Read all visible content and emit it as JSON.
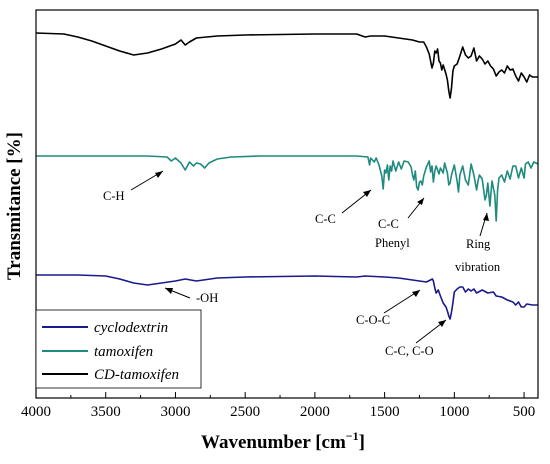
{
  "chart_data": {
    "type": "line",
    "title": "",
    "xlabel": "Wavenumber [cm",
    "xlabel_sup": "−1",
    "xlabel_close": "]",
    "ylabel": "Transmitance [%]",
    "xlim": [
      4000,
      400
    ],
    "x_reversed": true,
    "x_ticks": [
      4000,
      3500,
      3000,
      2500,
      2000,
      1500,
      1000,
      500
    ],
    "y_ticks": "none",
    "grid": false,
    "legend_position": "bottom-left",
    "series": [
      {
        "name": "cyclodextrin",
        "color": "#1a1a8c",
        "points": [
          [
            4000,
            275
          ],
          [
            3700,
            275
          ],
          [
            3500,
            276
          ],
          [
            3400,
            279
          ],
          [
            3300,
            283
          ],
          [
            3200,
            285
          ],
          [
            3100,
            283
          ],
          [
            3000,
            281
          ],
          [
            2930,
            279
          ],
          [
            2850,
            281
          ],
          [
            2700,
            278
          ],
          [
            2500,
            277
          ],
          [
            2000,
            276
          ],
          [
            1700,
            277
          ],
          [
            1640,
            276
          ],
          [
            1500,
            277
          ],
          [
            1400,
            278
          ],
          [
            1300,
            280
          ],
          [
            1250,
            281
          ],
          [
            1200,
            282
          ],
          [
            1157,
            279
          ],
          [
            1150,
            281
          ],
          [
            1140,
            288
          ],
          [
            1130,
            293
          ],
          [
            1115,
            290
          ],
          [
            1100,
            296
          ],
          [
            1080,
            303
          ],
          [
            1060,
            307
          ],
          [
            1050,
            311
          ],
          [
            1040,
            316
          ],
          [
            1030,
            319
          ],
          [
            1020,
            312
          ],
          [
            1010,
            303
          ],
          [
            1000,
            292
          ],
          [
            980,
            289
          ],
          [
            960,
            287
          ],
          [
            940,
            287
          ],
          [
            920,
            292
          ],
          [
            900,
            289
          ],
          [
            880,
            291
          ],
          [
            860,
            289
          ],
          [
            840,
            293
          ],
          [
            800,
            290
          ],
          [
            760,
            293
          ],
          [
            720,
            292
          ],
          [
            700,
            296
          ],
          [
            660,
            297
          ],
          [
            620,
            300
          ],
          [
            580,
            302
          ],
          [
            560,
            305
          ],
          [
            540,
            302
          ],
          [
            520,
            307
          ],
          [
            500,
            307
          ],
          [
            480,
            304
          ],
          [
            440,
            305
          ],
          [
            400,
            305
          ]
        ]
      },
      {
        "name": "tamoxifen",
        "color": "#1f8a7e",
        "points": [
          [
            4000,
            156
          ],
          [
            3600,
            156
          ],
          [
            3200,
            156
          ],
          [
            3060,
            157
          ],
          [
            3030,
            161
          ],
          [
            3000,
            158
          ],
          [
            2960,
            163
          ],
          [
            2930,
            170
          ],
          [
            2900,
            162
          ],
          [
            2870,
            166
          ],
          [
            2850,
            163
          ],
          [
            2820,
            164
          ],
          [
            2790,
            168
          ],
          [
            2760,
            163
          ],
          [
            2700,
            159
          ],
          [
            2600,
            157
          ],
          [
            2400,
            156
          ],
          [
            2000,
            156
          ],
          [
            1700,
            156
          ],
          [
            1620,
            157
          ],
          [
            1608,
            165
          ],
          [
            1600,
            158
          ],
          [
            1575,
            162
          ],
          [
            1560,
            158
          ],
          [
            1540,
            165
          ],
          [
            1520,
            176
          ],
          [
            1510,
            189
          ],
          [
            1500,
            170
          ],
          [
            1490,
            173
          ],
          [
            1480,
            165
          ],
          [
            1470,
            180
          ],
          [
            1460,
            166
          ],
          [
            1450,
            171
          ],
          [
            1440,
            161
          ],
          [
            1420,
            171
          ],
          [
            1400,
            162
          ],
          [
            1380,
            169
          ],
          [
            1360,
            161
          ],
          [
            1330,
            162
          ],
          [
            1310,
            167
          ],
          [
            1300,
            175
          ],
          [
            1290,
            180
          ],
          [
            1280,
            171
          ],
          [
            1270,
            187
          ],
          [
            1260,
            190
          ],
          [
            1250,
            182
          ],
          [
            1240,
            181
          ],
          [
            1230,
            185
          ],
          [
            1220,
            176
          ],
          [
            1200,
            167
          ],
          [
            1180,
            161
          ],
          [
            1170,
            172
          ],
          [
            1160,
            166
          ],
          [
            1150,
            182
          ],
          [
            1140,
            171
          ],
          [
            1130,
            166
          ],
          [
            1110,
            174
          ],
          [
            1100,
            168
          ],
          [
            1080,
            173
          ],
          [
            1070,
            163
          ],
          [
            1050,
            173
          ],
          [
            1040,
            185
          ],
          [
            1030,
            183
          ],
          [
            1020,
            175
          ],
          [
            1000,
            165
          ],
          [
            980,
            181
          ],
          [
            970,
            192
          ],
          [
            960,
            175
          ],
          [
            940,
            166
          ],
          [
            920,
            180
          ],
          [
            900,
            185
          ],
          [
            880,
            164
          ],
          [
            860,
            175
          ],
          [
            840,
            190
          ],
          [
            830,
            181
          ],
          [
            820,
            175
          ],
          [
            800,
            179
          ],
          [
            780,
            200
          ],
          [
            770,
            195
          ],
          [
            760,
            183
          ],
          [
            745,
            206
          ],
          [
            730,
            181
          ],
          [
            710,
            195
          ],
          [
            700,
            221
          ],
          [
            690,
            190
          ],
          [
            680,
            178
          ],
          [
            660,
            175
          ],
          [
            640,
            182
          ],
          [
            620,
            171
          ],
          [
            600,
            179
          ],
          [
            580,
            166
          ],
          [
            560,
            166
          ],
          [
            540,
            178
          ],
          [
            520,
            168
          ],
          [
            500,
            178
          ],
          [
            490,
            164
          ],
          [
            470,
            162
          ],
          [
            450,
            168
          ],
          [
            430,
            162
          ],
          [
            400,
            164
          ]
        ]
      },
      {
        "name": "CD-tamoxifen",
        "color": "#000000",
        "points": [
          [
            4000,
            33
          ],
          [
            3800,
            34
          ],
          [
            3700,
            37
          ],
          [
            3600,
            41
          ],
          [
            3500,
            46
          ],
          [
            3400,
            51
          ],
          [
            3300,
            55
          ],
          [
            3200,
            53
          ],
          [
            3100,
            49
          ],
          [
            3000,
            44
          ],
          [
            2960,
            40
          ],
          [
            2930,
            45
          ],
          [
            2900,
            42
          ],
          [
            2850,
            38
          ],
          [
            2700,
            36
          ],
          [
            2500,
            35
          ],
          [
            2000,
            34
          ],
          [
            1700,
            34
          ],
          [
            1640,
            37
          ],
          [
            1600,
            36
          ],
          [
            1500,
            36
          ],
          [
            1400,
            38
          ],
          [
            1300,
            40
          ],
          [
            1250,
            42
          ],
          [
            1220,
            42
          ],
          [
            1200,
            47
          ],
          [
            1180,
            54
          ],
          [
            1160,
            68
          ],
          [
            1150,
            63
          ],
          [
            1140,
            51
          ],
          [
            1130,
            53
          ],
          [
            1120,
            49
          ],
          [
            1110,
            61
          ],
          [
            1100,
            63
          ],
          [
            1090,
            70
          ],
          [
            1080,
            65
          ],
          [
            1060,
            74
          ],
          [
            1050,
            80
          ],
          [
            1040,
            91
          ],
          [
            1030,
            98
          ],
          [
            1020,
            88
          ],
          [
            1010,
            71
          ],
          [
            1000,
            66
          ],
          [
            980,
            64
          ],
          [
            960,
            56
          ],
          [
            940,
            47
          ],
          [
            920,
            55
          ],
          [
            900,
            58
          ],
          [
            880,
            56
          ],
          [
            860,
            48
          ],
          [
            840,
            61
          ],
          [
            820,
            56
          ],
          [
            800,
            59
          ],
          [
            780,
            64
          ],
          [
            760,
            61
          ],
          [
            740,
            66
          ],
          [
            720,
            69
          ],
          [
            700,
            76
          ],
          [
            680,
            72
          ],
          [
            660,
            70
          ],
          [
            640,
            73
          ],
          [
            620,
            66
          ],
          [
            600,
            70
          ],
          [
            580,
            69
          ],
          [
            560,
            76
          ],
          [
            540,
            81
          ],
          [
            520,
            73
          ],
          [
            500,
            77
          ],
          [
            480,
            82
          ],
          [
            460,
            75
          ],
          [
            440,
            77
          ],
          [
            400,
            77
          ]
        ]
      }
    ],
    "annotations": [
      {
        "text": "C-H"
      },
      {
        "text": "C-C"
      },
      {
        "text": "C-C"
      },
      {
        "text": "Phenyl"
      },
      {
        "text": "Ring"
      },
      {
        "text": "vibration"
      },
      {
        "text": "-OH"
      },
      {
        "text": "C-O-C"
      },
      {
        "text": "C-C, C-O"
      }
    ]
  }
}
